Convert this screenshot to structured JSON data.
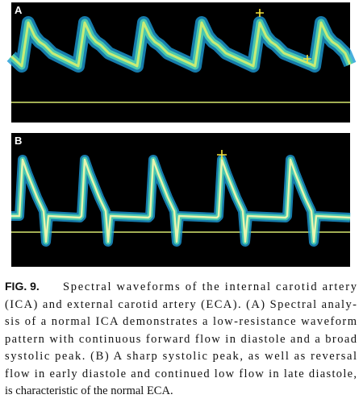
{
  "panels": [
    {
      "label": "A"
    },
    {
      "label": "B"
    }
  ],
  "caption": {
    "figure_label": "FIG. 9.",
    "lines": [
      "Spectral waveforms of the internal carotid artery",
      "(ICA) and external carotid artery (ECA). (A) Spectral analy-",
      "sis of a normal ICA demonstrates a low-resistance waveform",
      "pattern with continuous forward flow in diastole and a broad",
      "systolic peak. (B) A sharp systolic peak, as well as reversal",
      "flow in early diastole and continued low flow in late diastole,",
      "is characteristic of the normal ECA."
    ]
  }
}
